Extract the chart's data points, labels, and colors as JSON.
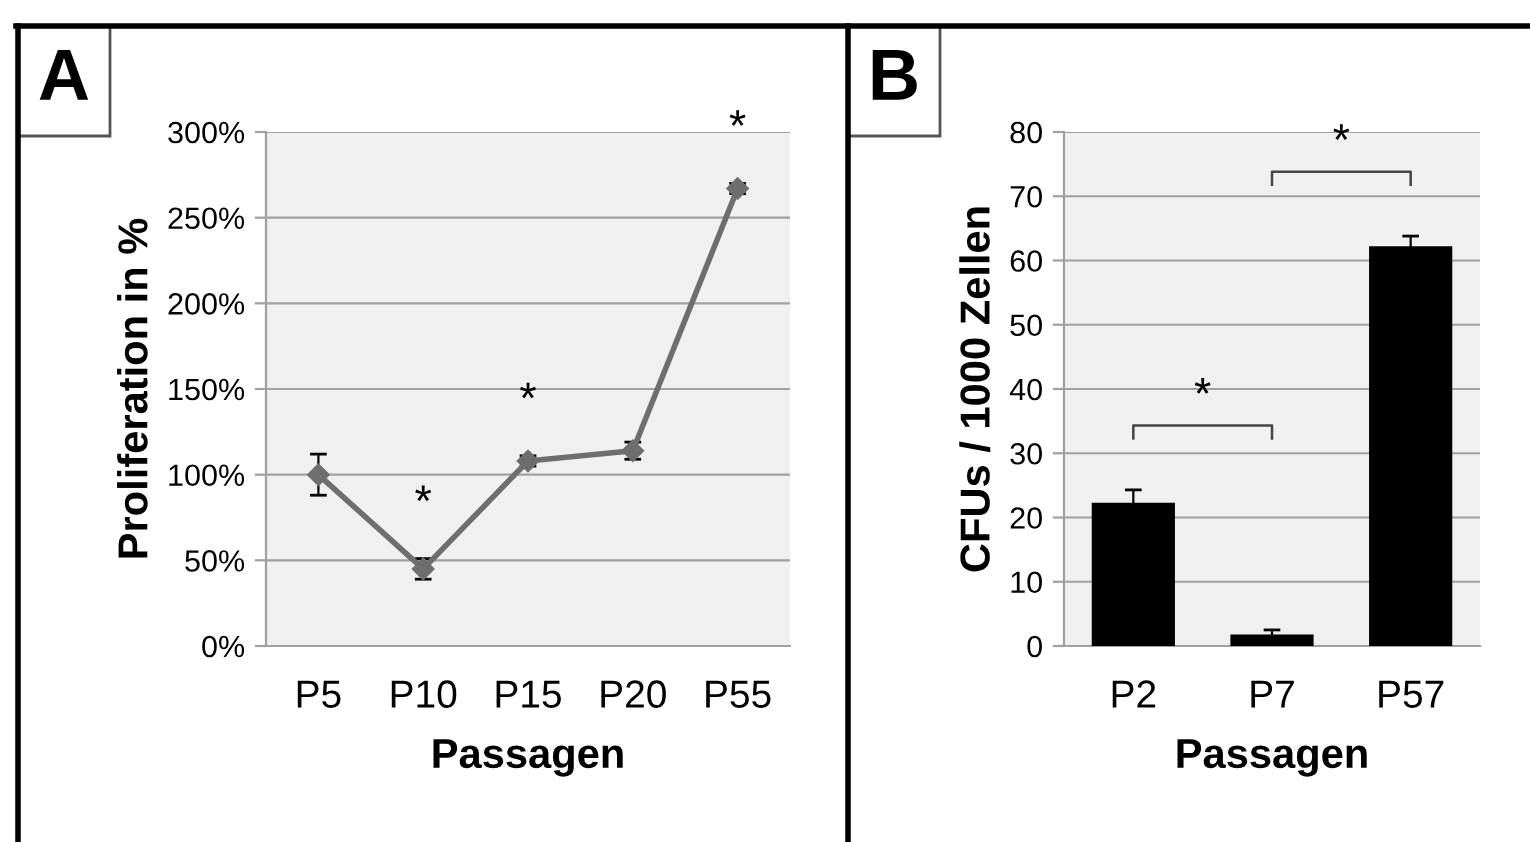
{
  "chart_data": [
    {
      "type": "line",
      "title": "A",
      "xlabel": "Passagen",
      "ylabel": "Proliferation in %",
      "categories": [
        "P5",
        "P10",
        "P15",
        "P20",
        "P55"
      ],
      "series": [
        {
          "color": "#6e6e6e",
          "values": [
            100,
            45,
            108,
            114,
            267
          ],
          "errors": [
            12,
            6,
            3,
            5,
            3
          ]
        }
      ],
      "ylim": [
        0,
        300
      ],
      "yticks": [
        {
          "value": 0,
          "label": "0%"
        },
        {
          "value": 50,
          "label": "50%"
        },
        {
          "value": 100,
          "label": "100%"
        },
        {
          "value": 150,
          "label": "150%"
        },
        {
          "value": 200,
          "label": "200%"
        },
        {
          "value": 250,
          "label": "250%"
        },
        {
          "value": 300,
          "label": "300%"
        }
      ],
      "grid": "y",
      "marker": "diamond",
      "line_style": "solid",
      "annotations": [
        {
          "text": "*",
          "x": "P10",
          "y": 45
        },
        {
          "text": "*",
          "x": "P15",
          "y": 108
        },
        {
          "text": "*",
          "x": "P55",
          "y": 267
        }
      ]
    },
    {
      "type": "bar",
      "title": "B",
      "xlabel": "Passagen",
      "ylabel": "CFUs / 1000 Zellen",
      "categories": [
        "P2",
        "P7",
        "P57"
      ],
      "series": [
        {
          "color": "#000000",
          "values": [
            22.3,
            1.8,
            62.2
          ],
          "errors": [
            2,
            0.7,
            1.6
          ]
        }
      ],
      "ylim": [
        0,
        80
      ],
      "yticks": [
        0,
        10,
        20,
        30,
        40,
        50,
        60,
        70,
        80
      ],
      "grid": "y",
      "annotations": [
        "*",
        "*"
      ]
    }
  ]
}
